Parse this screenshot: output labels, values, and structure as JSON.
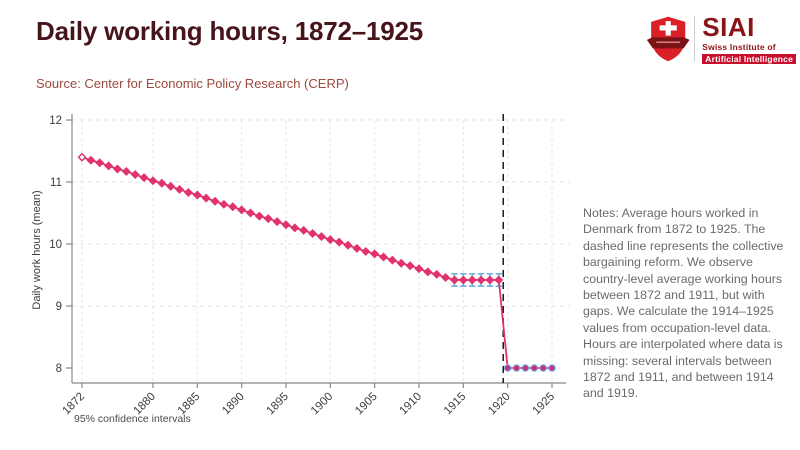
{
  "header": {
    "title": "Daily working hours, 1872–1925",
    "source": "Source: Center for Economic Policy Research (CERP)"
  },
  "logo": {
    "acronym": "SIAI",
    "line1": "Swiss Institute of",
    "line2": "Artificial Intelligence",
    "shield_icon": "swiss-shield-icon"
  },
  "notes": "Notes: Average hours worked in Denmark from 1872 to 1925. The dashed line represents the collective bargaining reform. We observe country-level average working hours between 1872 and 1911, but with gaps. We calculate the 1914–1925 values from occupation-level data. Hours are interpolated where data is missing: several intervals between 1872 and 1911, and between 1914 and 1919.",
  "caption": "95% confidence intervals",
  "chart_data": {
    "type": "line",
    "title": "",
    "xlabel": "",
    "ylabel": "Daily work hours (mean)",
    "ylim": [
      8,
      12
    ],
    "yticks": [
      8,
      9,
      10,
      11,
      12
    ],
    "xticks": [
      1872,
      1880,
      1885,
      1890,
      1895,
      1900,
      1905,
      1910,
      1915,
      1920,
      1925
    ],
    "grid": true,
    "legend": "none",
    "reform_line_x": 1919.5,
    "x": [
      1872,
      1873,
      1874,
      1875,
      1876,
      1877,
      1878,
      1879,
      1880,
      1881,
      1882,
      1883,
      1884,
      1885,
      1886,
      1887,
      1888,
      1889,
      1890,
      1891,
      1892,
      1893,
      1894,
      1895,
      1896,
      1897,
      1898,
      1899,
      1900,
      1901,
      1902,
      1903,
      1904,
      1905,
      1906,
      1907,
      1908,
      1909,
      1910,
      1911,
      1912,
      1913,
      1914,
      1915,
      1916,
      1917,
      1918,
      1919,
      1920,
      1921,
      1922,
      1923,
      1924,
      1925
    ],
    "series": [
      {
        "name": "Daily work hours (mean)",
        "values": [
          11.4,
          11.35,
          11.31,
          11.26,
          11.21,
          11.17,
          11.12,
          11.07,
          11.02,
          10.98,
          10.93,
          10.88,
          10.83,
          10.79,
          10.74,
          10.69,
          10.64,
          10.6,
          10.55,
          10.5,
          10.45,
          10.41,
          10.36,
          10.31,
          10.26,
          10.22,
          10.17,
          10.12,
          10.07,
          10.03,
          9.98,
          9.93,
          9.88,
          9.84,
          9.79,
          9.74,
          9.69,
          9.65,
          9.6,
          9.55,
          9.51,
          9.46,
          9.42,
          9.42,
          9.42,
          9.42,
          9.42,
          9.42,
          8,
          8,
          8,
          8,
          8,
          8
        ]
      }
    ],
    "confidence_intervals": {
      "years": [
        1914,
        1915,
        1916,
        1917,
        1918,
        1919
      ],
      "value": 9.42,
      "half_width": 0.1
    },
    "marker_segments": [
      {
        "from": 1872,
        "to": 1919,
        "marker": "diamond"
      },
      {
        "from": 1920,
        "to": 1925,
        "marker": "circle"
      }
    ],
    "first_marker_hollow": true
  },
  "colors": {
    "title": "#47141a",
    "source": "#9a4a3e",
    "notes": "#6b6b6b",
    "axis": "#3c3c3c",
    "axisline": "#888888",
    "grid": "#e6e6e6",
    "line": "#e0336e",
    "ci": "#6fb0e2",
    "dot": "#c4307d",
    "reform": "#1a1a1a",
    "brand_red": "#d92027",
    "brand_dark": "#8b1418",
    "chip": "#c8102e"
  }
}
